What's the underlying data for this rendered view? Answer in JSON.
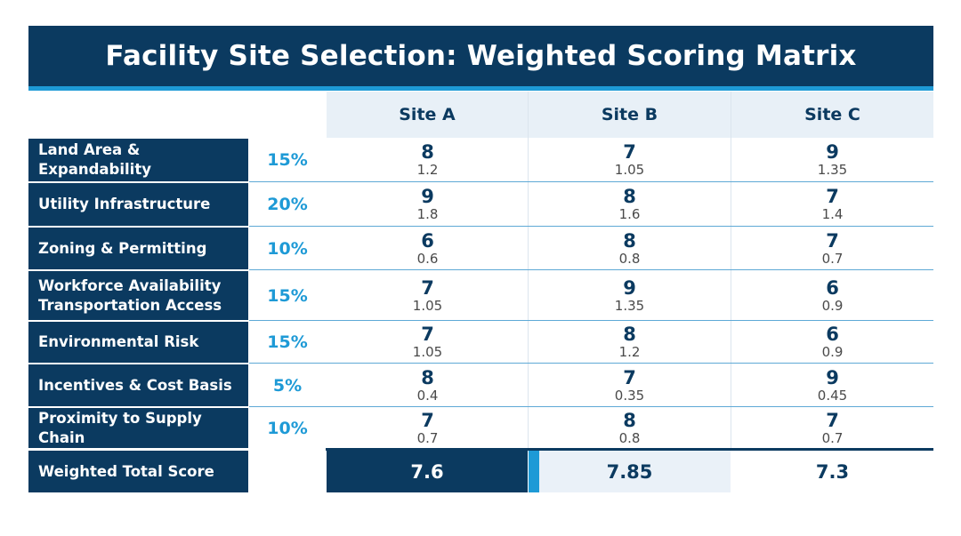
{
  "title": "Facility Site Selection: Weighted Scoring Matrix",
  "sites": [
    "Site A",
    "Site B",
    "Site C"
  ],
  "criteria": [
    {
      "label": "Land Area & Expandability",
      "weight": "15%",
      "scores": [
        {
          "score": "8",
          "weighted": "1.2"
        },
        {
          "score": "7",
          "weighted": "1.05"
        },
        {
          "score": "9",
          "weighted": "1.35"
        }
      ]
    },
    {
      "label": "Utility Infrastructure",
      "weight": "20%",
      "scores": [
        {
          "score": "9",
          "weighted": "1.8"
        },
        {
          "score": "8",
          "weighted": "1.6"
        },
        {
          "score": "7",
          "weighted": "1.4"
        }
      ]
    },
    {
      "label": "Zoning & Permitting",
      "weight": "10%",
      "scores": [
        {
          "score": "6",
          "weighted": "0.6"
        },
        {
          "score": "8",
          "weighted": "0.8"
        },
        {
          "score": "7",
          "weighted": "0.7"
        }
      ]
    },
    {
      "label": "Workforce Availability",
      "label2": "Transportation Access",
      "weight": "15%",
      "scores": [
        {
          "score": "7",
          "weighted": "1.05"
        },
        {
          "score": "9",
          "weighted": "1.35"
        },
        {
          "score": "6",
          "weighted": "0.9"
        }
      ]
    },
    {
      "label": "Environmental Risk",
      "weight": "15%",
      "scores": [
        {
          "score": "7",
          "weighted": "1.05"
        },
        {
          "score": "8",
          "weighted": "1.2"
        },
        {
          "score": "6",
          "weighted": "0.9"
        }
      ]
    },
    {
      "label": "Incentives & Cost Basis",
      "weight": "5%",
      "scores": [
        {
          "score": "8",
          "weighted": "0.4"
        },
        {
          "score": "7",
          "weighted": "0.35"
        },
        {
          "score": "9",
          "weighted": "0.45"
        }
      ]
    },
    {
      "label": "Proximity to Supply Chain",
      "weight": "10%",
      "scores": [
        {
          "score": "7",
          "weighted": "0.7"
        },
        {
          "score": "8",
          "weighted": "0.8"
        },
        {
          "score": "7",
          "weighted": "0.7"
        }
      ]
    }
  ],
  "total": {
    "label": "Weighted Total Score",
    "values": [
      "7.6",
      "7.85",
      "7.3"
    ]
  },
  "colors": {
    "navy": "#0b3a60",
    "accent": "#1e9ad6",
    "header_bg": "#e8f0f7"
  }
}
